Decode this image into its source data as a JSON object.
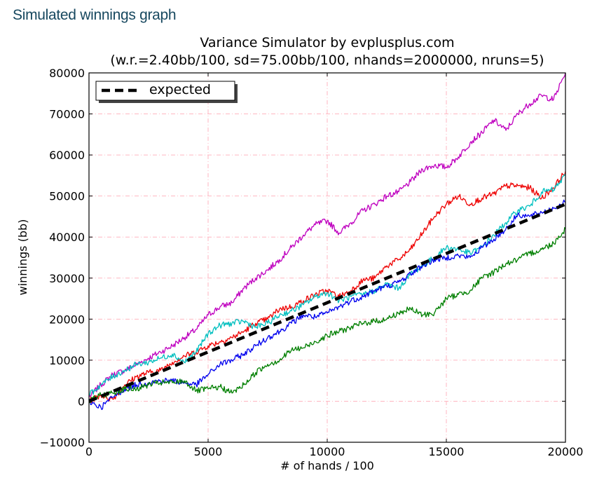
{
  "page": {
    "heading": "Simulated winnings graph"
  },
  "chart_data": {
    "type": "line",
    "title": "Variance Simulator by evplusplus.com",
    "subtitle": "(w.r.=2.40bb/100, sd=75.00bb/100, nhands=2000000, nruns=5)",
    "xlabel": "# of hands / 100",
    "ylabel": "winnings (bb)",
    "xlim": [
      0,
      20000
    ],
    "ylim": [
      -10000,
      80000
    ],
    "xticks": [
      0,
      5000,
      10000,
      15000,
      20000
    ],
    "xtick_labels": [
      "0",
      "5000",
      "10000",
      "15000",
      "20000"
    ],
    "yticks": [
      -10000,
      0,
      10000,
      20000,
      30000,
      40000,
      50000,
      60000,
      70000,
      80000
    ],
    "ytick_labels": [
      "−10000",
      "0",
      "10000",
      "20000",
      "30000",
      "40000",
      "50000",
      "60000",
      "70000",
      "80000"
    ],
    "grid": true,
    "legend": {
      "position": "top-left",
      "entries": [
        "expected"
      ]
    },
    "expected": {
      "name": "expected",
      "x": [
        0,
        20000
      ],
      "y": [
        0,
        48000
      ],
      "color": "#000000"
    },
    "series": [
      {
        "name": "magenta run",
        "color": "#bf00bf",
        "x": [
          0,
          500,
          1000,
          1500,
          2000,
          2500,
          3000,
          3500,
          4000,
          4500,
          5000,
          5500,
          6000,
          6500,
          7000,
          7500,
          8000,
          8500,
          9000,
          9500,
          10000,
          10500,
          11000,
          11500,
          12000,
          12500,
          13000,
          13500,
          14000,
          14500,
          15000,
          15500,
          16000,
          16500,
          17000,
          17500,
          18000,
          18500,
          19000,
          19500,
          20000
        ],
        "y": [
          1000,
          4000,
          6500,
          7500,
          9000,
          10500,
          12000,
          13500,
          15500,
          17500,
          21000,
          23000,
          24000,
          27500,
          30000,
          32000,
          34500,
          37500,
          40500,
          43000,
          44000,
          41000,
          43500,
          46500,
          48000,
          50000,
          51000,
          53500,
          56500,
          57500,
          57000,
          59500,
          63000,
          65500,
          68500,
          66000,
          70000,
          72500,
          74500,
          73500,
          80000
        ]
      },
      {
        "name": "red run",
        "color": "#ee0000",
        "x": [
          0,
          500,
          1000,
          1500,
          2000,
          2500,
          3000,
          3500,
          4000,
          4500,
          5000,
          5500,
          6000,
          6500,
          7000,
          7500,
          8000,
          8500,
          9000,
          9500,
          10000,
          10500,
          11000,
          11500,
          12000,
          12500,
          13000,
          13500,
          14000,
          14500,
          15000,
          15500,
          16000,
          16500,
          17000,
          17500,
          18000,
          18500,
          19000,
          19500,
          20000
        ],
        "y": [
          0,
          1500,
          500,
          4000,
          6000,
          7000,
          7500,
          9500,
          11000,
          12000,
          13500,
          14500,
          15500,
          17000,
          19000,
          20000,
          22500,
          23000,
          24500,
          26000,
          27000,
          25500,
          27000,
          29500,
          30000,
          33000,
          34500,
          37000,
          41000,
          45000,
          48000,
          50000,
          48000,
          49500,
          50500,
          52500,
          52500,
          52000,
          49500,
          52000,
          56000
        ]
      },
      {
        "name": "cyan run",
        "color": "#00bfbf",
        "x": [
          0,
          500,
          1000,
          1500,
          2000,
          2500,
          3000,
          3500,
          4000,
          4500,
          5000,
          5500,
          6000,
          6500,
          7000,
          7500,
          8000,
          8500,
          9000,
          9500,
          10000,
          10500,
          11000,
          11500,
          12000,
          12500,
          13000,
          13500,
          14000,
          14500,
          15000,
          15500,
          16000,
          16500,
          17000,
          17500,
          18000,
          18500,
          19000,
          19500,
          20000
        ],
        "y": [
          1500,
          4000,
          6000,
          7500,
          9000,
          9500,
          10500,
          11500,
          9500,
          12000,
          16500,
          18500,
          19000,
          19500,
          18000,
          19000,
          21000,
          22000,
          23500,
          25500,
          26500,
          24500,
          25500,
          26000,
          27000,
          28500,
          27500,
          31000,
          33000,
          35000,
          37500,
          37000,
          36000,
          37500,
          40500,
          43500,
          46500,
          47500,
          51000,
          51500,
          55000
        ]
      },
      {
        "name": "blue run",
        "color": "#0000ee",
        "x": [
          0,
          500,
          1000,
          1500,
          2000,
          2500,
          3000,
          3500,
          4000,
          4500,
          5000,
          5500,
          6000,
          6500,
          7000,
          7500,
          8000,
          8500,
          9000,
          9500,
          10000,
          10500,
          11000,
          11500,
          12000,
          12500,
          13000,
          13500,
          14000,
          14500,
          15000,
          15500,
          16000,
          16500,
          17000,
          17500,
          18000,
          18500,
          19000,
          19500,
          20000
        ],
        "y": [
          0,
          -1500,
          1000,
          3000,
          4000,
          4500,
          5000,
          5000,
          4500,
          4000,
          6500,
          9000,
          10000,
          11500,
          13500,
          15500,
          17000,
          19000,
          21000,
          20500,
          21500,
          23000,
          24500,
          25500,
          27000,
          28000,
          29000,
          31000,
          33000,
          34500,
          35000,
          35500,
          35000,
          37500,
          39500,
          42000,
          45500,
          45000,
          46000,
          47000,
          48500
        ]
      },
      {
        "name": "green run",
        "color": "#007f00",
        "x": [
          0,
          500,
          1000,
          1500,
          2000,
          2500,
          3000,
          3500,
          4000,
          4500,
          5000,
          5500,
          6000,
          6500,
          7000,
          7500,
          8000,
          8500,
          9000,
          9500,
          10000,
          10500,
          11000,
          11500,
          12000,
          12500,
          13000,
          13500,
          14000,
          14500,
          15000,
          15500,
          16000,
          16500,
          17000,
          17500,
          18000,
          18500,
          19000,
          19500,
          20000
        ],
        "y": [
          0,
          1500,
          2000,
          3000,
          3000,
          4000,
          4500,
          4500,
          5000,
          2500,
          3000,
          3500,
          2000,
          4000,
          7000,
          9000,
          10000,
          12500,
          13000,
          14500,
          16000,
          17000,
          18000,
          19000,
          19500,
          20000,
          21500,
          22500,
          21000,
          21500,
          25000,
          26000,
          27000,
          30000,
          31500,
          33500,
          34500,
          36000,
          37000,
          38500,
          42000
        ]
      }
    ]
  }
}
